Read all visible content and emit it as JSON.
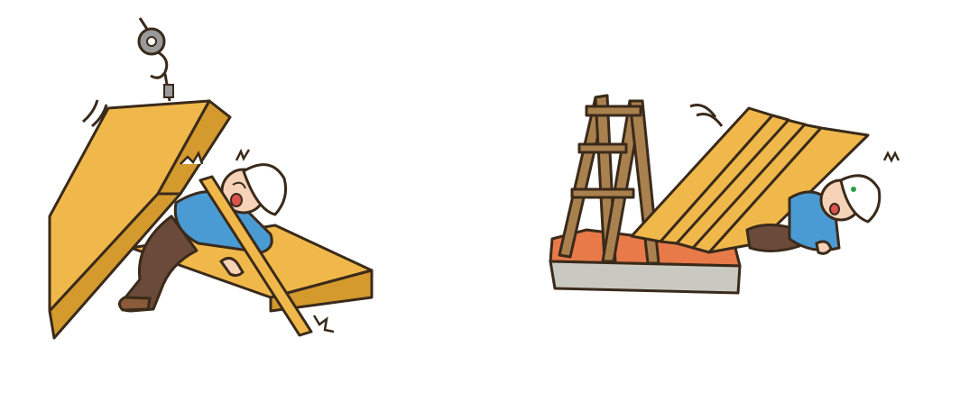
{
  "scenes": [
    {
      "subject": "crane-hoisted-panel-falls-on-worker"
    },
    {
      "subject": "stacked-panels-topple-onto-worker-near-stepladder"
    }
  ],
  "colors": {
    "wood": "#f0b84a",
    "wood_dark": "#d49a2e",
    "outline": "#3a2a1a",
    "shirt": "#4a9bd4",
    "pants": "#6b4a3a",
    "helmet": "#ffffff",
    "skin": "#f6d2b8",
    "platform_top": "#e87a4a",
    "platform_side": "#c9c9c2",
    "ladder": "#a9814f",
    "hook": "#9a9a9a"
  }
}
